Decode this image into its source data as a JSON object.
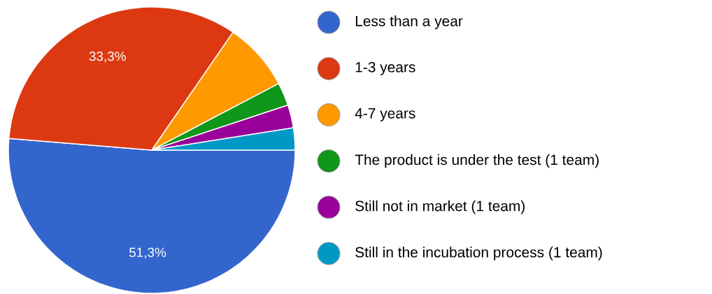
{
  "chart_data": {
    "type": "pie",
    "categories": [
      "Less than a year",
      "1-3 years",
      "4-7 years",
      "The product is under the test (1 team)",
      "Still not in market (1 team)",
      "Still in the incubation process (1 team)"
    ],
    "values": [
      51.3,
      33.3,
      7.7,
      2.6,
      2.6,
      2.5
    ],
    "colors": [
      "#3366cc",
      "#dc3912",
      "#ff9900",
      "#109618",
      "#990099",
      "#0099c6"
    ],
    "value_labels": [
      "51,3%",
      "33,3%",
      null,
      null,
      null,
      null
    ],
    "legend": "right"
  }
}
